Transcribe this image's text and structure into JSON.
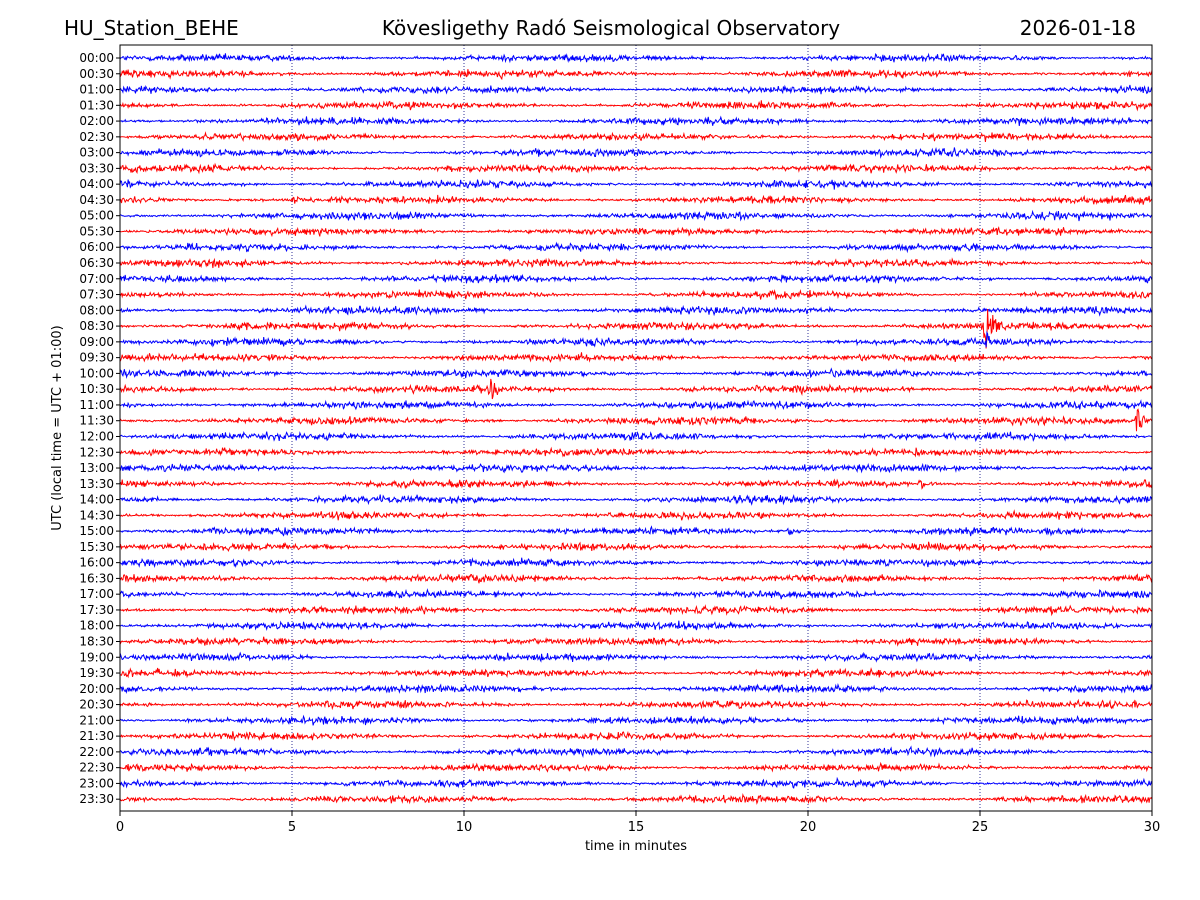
{
  "header": {
    "station": "HU_Station_BEHE",
    "observatory": "Kövesligethy Radó Seismological Observatory",
    "date": "2026-01-18"
  },
  "colors": {
    "even_trace": "#0000ff",
    "odd_trace": "#ff0000",
    "grid": "#000080",
    "axis": "#000000"
  },
  "chart_data": {
    "type": "line",
    "title": "Kövesligethy Radó Seismological Observatory",
    "xlabel": "time in minutes",
    "ylabel": "UTC (local time = UTC + 01:00)",
    "xlim": [
      0,
      30
    ],
    "xticks": [
      "0",
      "5",
      "10",
      "15",
      "20",
      "25",
      "30"
    ],
    "xtick_values": [
      0,
      5,
      10,
      15,
      20,
      25,
      30
    ],
    "grid": "vertical dotted lines at each x tick",
    "rows": [
      "00:00",
      "00:30",
      "01:00",
      "01:30",
      "02:00",
      "02:30",
      "03:00",
      "03:30",
      "04:00",
      "04:30",
      "05:00",
      "05:30",
      "06:00",
      "06:30",
      "07:00",
      "07:30",
      "08:00",
      "08:30",
      "09:00",
      "09:30",
      "10:00",
      "10:30",
      "11:00",
      "11:30",
      "12:00",
      "12:30",
      "13:00",
      "13:30",
      "14:00",
      "14:30",
      "15:00",
      "15:30",
      "16:00",
      "16:30",
      "17:00",
      "17:30",
      "18:00",
      "18:30",
      "19:00",
      "19:30",
      "20:00",
      "20:30",
      "21:00",
      "21:30",
      "22:00",
      "22:30",
      "23:00",
      "23:30"
    ],
    "trace_colors": "alternating blue (full hour) / red (half hour)",
    "noise_amplitude": 0.12,
    "events": [
      {
        "row": "04:30",
        "minute": 5.1,
        "amplitude": 0.35,
        "duration": 0.3
      },
      {
        "row": "08:30",
        "minute": 25.2,
        "amplitude": 1.5,
        "duration": 0.6
      },
      {
        "row": "09:00",
        "minute": 25.2,
        "amplitude": 0.6,
        "duration": 0.3
      },
      {
        "row": "10:30",
        "minute": 10.8,
        "amplitude": 0.8,
        "duration": 0.5
      },
      {
        "row": "11:30",
        "minute": 29.6,
        "amplitude": 1.0,
        "duration": 0.4
      },
      {
        "row": "13:30",
        "minute": 23.3,
        "amplitude": 0.35,
        "duration": 0.5
      },
      {
        "row": "15:00",
        "minute": 19.5,
        "amplitude": 0.35,
        "duration": 0.6
      }
    ]
  }
}
